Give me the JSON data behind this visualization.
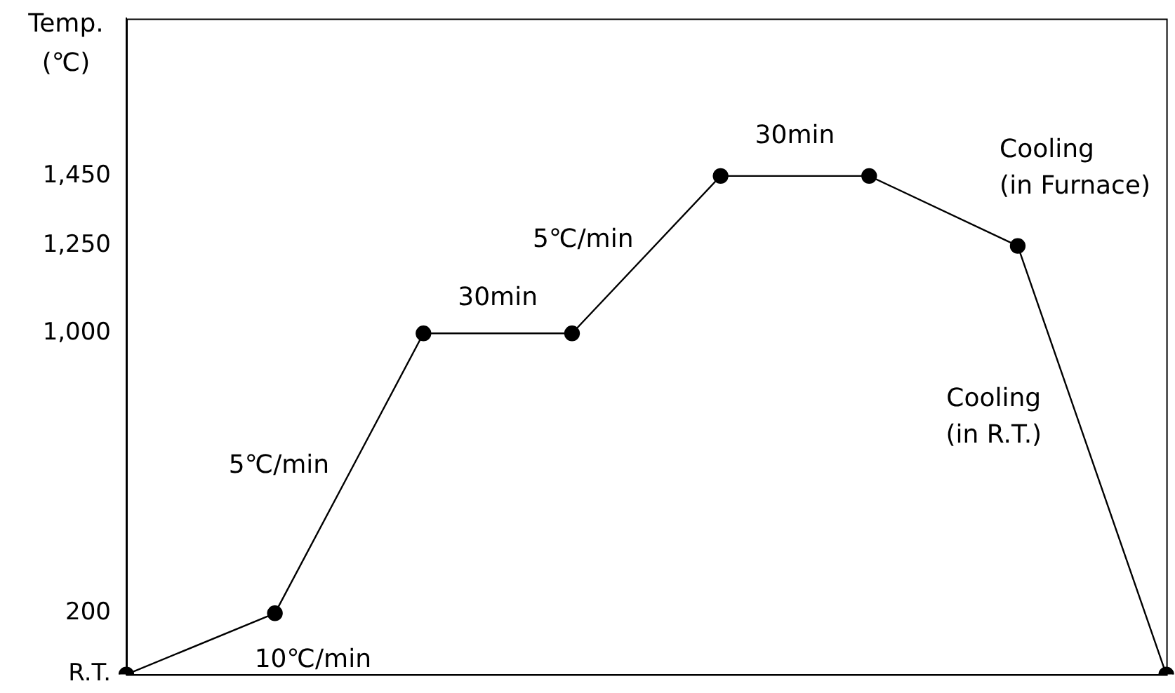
{
  "chart_data": {
    "type": "line",
    "ylabel": "Temp.\n(℃)",
    "categories": [
      null,
      null,
      null,
      null,
      null,
      null,
      null,
      null
    ],
    "series": [
      {
        "color": "#000000",
        "values": [
          25,
          200,
          1000,
          1000,
          1450,
          1450,
          1250,
          25
        ]
      }
    ],
    "ylim": [
      25,
      1900
    ],
    "yticks": [
      {
        "value": 25,
        "label": "R.T."
      },
      200,
      {
        "value": 1000,
        "label": "1,000"
      },
      {
        "value": 1250,
        "label": "1,250"
      },
      {
        "value": 1450,
        "label": "1,450"
      }
    ],
    "tick_labels": "y",
    "grid": false,
    "legend": false,
    "marker": "circle",
    "line_style": "solid",
    "annotations": [
      "10℃/min",
      "5℃/min",
      "30min",
      "5℃/min",
      "30min",
      "Cooling\n(in Furnace)",
      "Cooling\n(in R.T.)"
    ]
  }
}
